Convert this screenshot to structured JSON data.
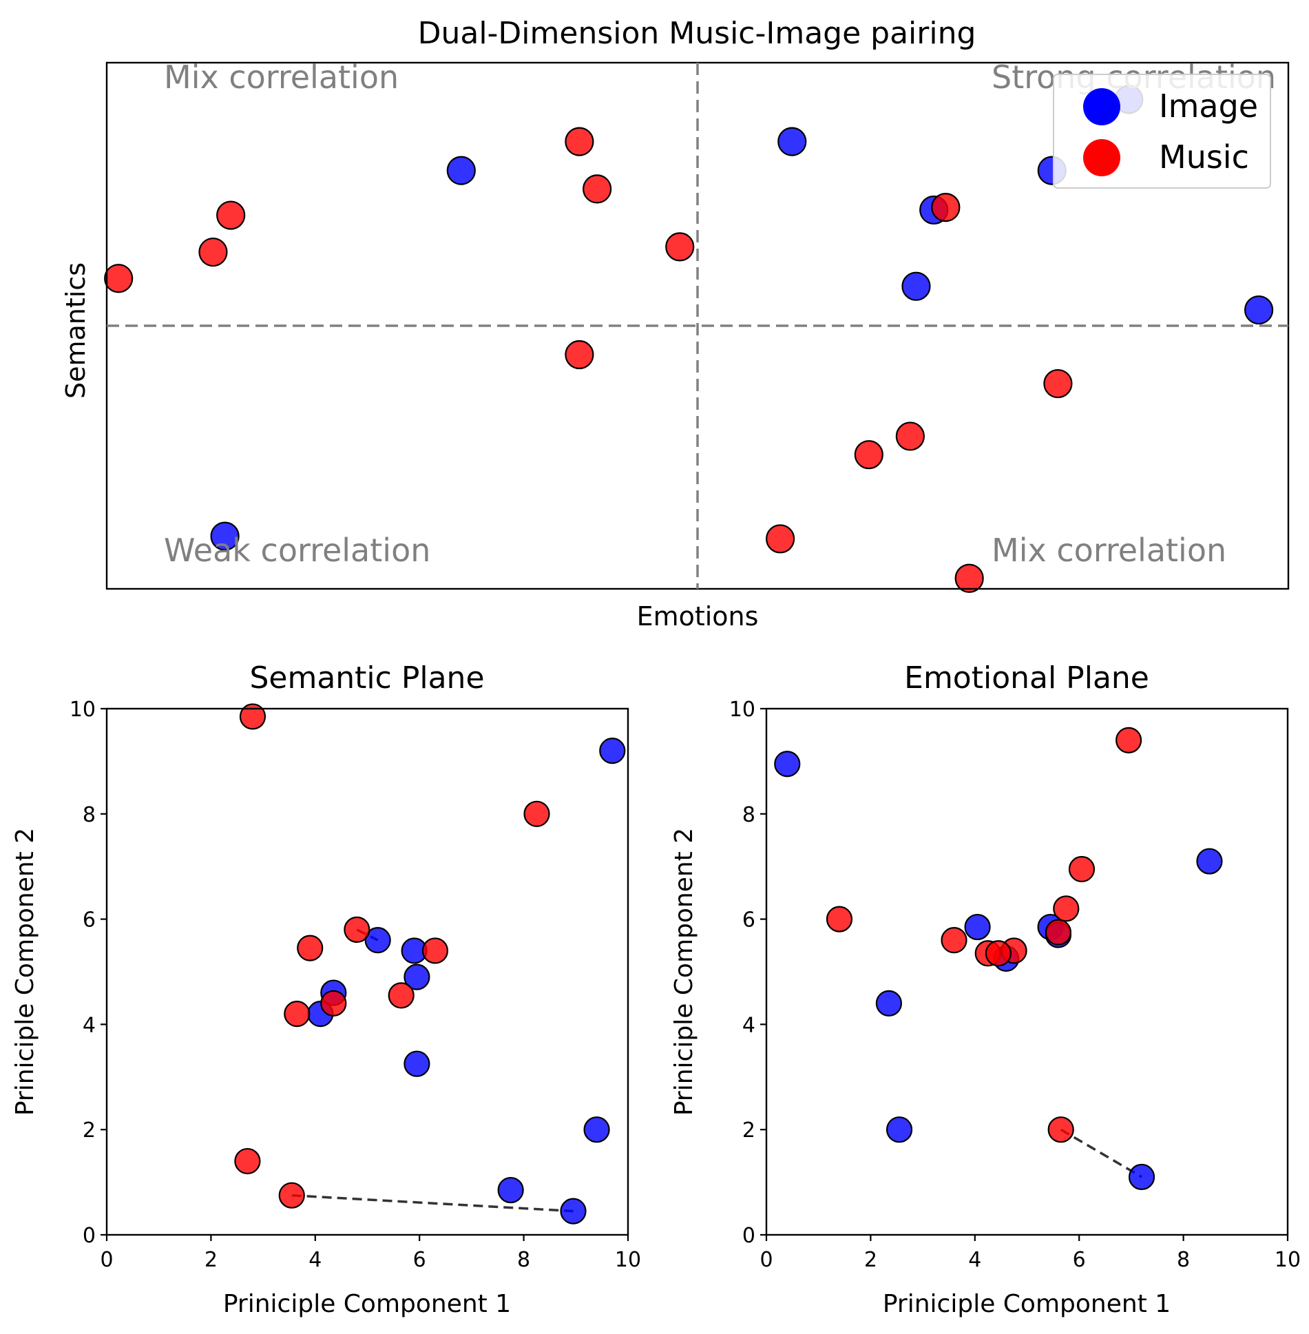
{
  "colors": {
    "image": "#0000ff",
    "music": "#ff0000",
    "guide": "#808080"
  },
  "main": {
    "title": "Dual-Dimension Music-Image pairing",
    "xlabel": "Emotions",
    "ylabel": "Semantics",
    "quadrants": {
      "top_left": "Mix correlation",
      "top_right": "Strong correlation",
      "bottom_left": "Weak correlation",
      "bottom_right": "Mix correlation"
    },
    "legend": {
      "image": "Image",
      "music": "Music"
    }
  },
  "semantic": {
    "title": "Semantic Plane",
    "xlabel": "Priniciple Component 1",
    "ylabel": "Priniciple Component 2",
    "x_ticks": [
      "0",
      "2",
      "4",
      "6",
      "8",
      "10"
    ],
    "y_ticks": [
      "0",
      "2",
      "4",
      "6",
      "8",
      "10"
    ]
  },
  "emotional": {
    "title": "Emotional Plane",
    "xlabel": "Priniciple Component 1",
    "ylabel": "Priniciple Component 2",
    "x_ticks": [
      "0",
      "2",
      "4",
      "6",
      "8",
      "10"
    ],
    "y_ticks": [
      "0",
      "2",
      "4",
      "6",
      "8",
      "10"
    ]
  },
  "chart_data": [
    {
      "type": "scatter",
      "title": "Dual-Dimension Music-Image pairing",
      "xlabel": "Emotions",
      "ylabel": "Semantics",
      "xlim": [
        -1,
        1
      ],
      "ylim": [
        -1,
        1
      ],
      "divider_lines": {
        "x": 0,
        "y": 0
      },
      "legend_position": "top-right",
      "series": [
        {
          "name": "Image",
          "points": [
            [
              -0.4,
              0.59
            ],
            [
              0.16,
              0.7
            ],
            [
              0.4,
              0.44
            ],
            [
              0.37,
              0.15
            ],
            [
              0.6,
              0.59
            ],
            [
              0.95,
              0.06
            ],
            [
              0.73,
              0.86
            ],
            [
              -0.8,
              -0.8
            ]
          ]
        },
        {
          "name": "Music",
          "points": [
            [
              -0.98,
              0.18
            ],
            [
              -0.82,
              0.28
            ],
            [
              -0.79,
              0.42
            ],
            [
              -0.2,
              0.7
            ],
            [
              -0.17,
              0.52
            ],
            [
              -0.03,
              0.3
            ],
            [
              -0.2,
              -0.11
            ],
            [
              0.42,
              0.45
            ],
            [
              0.61,
              -0.22
            ],
            [
              0.36,
              -0.42
            ],
            [
              0.29,
              -0.49
            ],
            [
              0.14,
              -0.81
            ],
            [
              0.46,
              -0.96
            ]
          ]
        }
      ]
    },
    {
      "type": "scatter",
      "title": "Semantic Plane",
      "xlabel": "Priniciple Component 1",
      "ylabel": "Priniciple Component 2",
      "xlim": [
        0,
        10
      ],
      "ylim": [
        0,
        10
      ],
      "series": [
        {
          "name": "Image",
          "points": [
            [
              9.7,
              9.2
            ],
            [
              5.2,
              5.6
            ],
            [
              5.9,
              5.4
            ],
            [
              5.95,
              4.9
            ],
            [
              4.35,
              4.6
            ],
            [
              4.1,
              4.2
            ],
            [
              5.95,
              3.25
            ],
            [
              9.4,
              2.0
            ],
            [
              7.75,
              0.85
            ],
            [
              8.95,
              0.45
            ]
          ]
        },
        {
          "name": "Music",
          "points": [
            [
              2.8,
              9.85
            ],
            [
              8.25,
              8.0
            ],
            [
              4.8,
              5.8
            ],
            [
              3.9,
              5.45
            ],
            [
              6.3,
              5.4
            ],
            [
              5.65,
              4.55
            ],
            [
              3.65,
              4.2
            ],
            [
              4.35,
              4.4
            ],
            [
              2.7,
              1.4
            ],
            [
              3.55,
              0.75
            ]
          ]
        }
      ],
      "pair_lines": [
        [
          [
            3.55,
            0.75
          ],
          [
            8.95,
            0.45
          ]
        ],
        [
          [
            4.8,
            5.8
          ],
          [
            5.2,
            5.6
          ]
        ]
      ]
    },
    {
      "type": "scatter",
      "title": "Emotional Plane",
      "xlabel": "Priniciple Component 1",
      "ylabel": "Priniciple Component 2",
      "xlim": [
        0,
        10
      ],
      "ylim": [
        0,
        10
      ],
      "series": [
        {
          "name": "Image",
          "points": [
            [
              0.4,
              8.95
            ],
            [
              8.5,
              7.1
            ],
            [
              4.05,
              5.85
            ],
            [
              5.45,
              5.85
            ],
            [
              5.6,
              5.7
            ],
            [
              4.6,
              5.25
            ],
            [
              2.35,
              4.4
            ],
            [
              2.55,
              2.0
            ],
            [
              7.2,
              1.1
            ]
          ]
        },
        {
          "name": "Music",
          "points": [
            [
              6.95,
              9.4
            ],
            [
              6.05,
              6.95
            ],
            [
              1.4,
              6.0
            ],
            [
              5.75,
              6.2
            ],
            [
              3.6,
              5.6
            ],
            [
              5.6,
              5.75
            ],
            [
              4.25,
              5.35
            ],
            [
              4.75,
              5.4
            ],
            [
              4.45,
              5.35
            ],
            [
              5.65,
              2.0
            ]
          ]
        }
      ],
      "pair_lines": [
        [
          [
            5.65,
            2.0
          ],
          [
            7.2,
            1.1
          ]
        ]
      ]
    }
  ]
}
